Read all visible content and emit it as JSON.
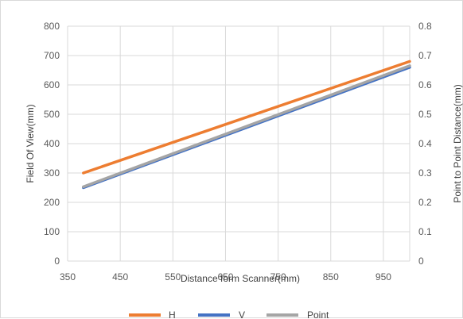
{
  "chart_data": {
    "type": "line",
    "title": "",
    "xlabel": "Distance form Scanner(mm)",
    "ylabel": "Field Of View(mm)",
    "y2label": "Point to Point Distance(mm)",
    "xlim": [
      350,
      1000
    ],
    "ylim": [
      0,
      800
    ],
    "y2lim": [
      0,
      0.8
    ],
    "xticks": [
      "350",
      "450",
      "550",
      "650",
      "750",
      "850",
      "950"
    ],
    "yticks": [
      "0",
      "100",
      "200",
      "300",
      "400",
      "500",
      "600",
      "700",
      "800"
    ],
    "y2ticks": [
      "0",
      "0.1",
      "0.2",
      "0.3",
      "0.4",
      "0.5",
      "0.6",
      "0.7",
      "0.8"
    ],
    "grid": true,
    "legend_position": "bottom",
    "series": [
      {
        "name": "H",
        "axis": "left",
        "color": "#ed7d31",
        "x": [
          380,
          1000
        ],
        "y": [
          300,
          680
        ]
      },
      {
        "name": "V",
        "axis": "left",
        "color": "#4472c4",
        "x": [
          380,
          1000
        ],
        "y": [
          250,
          660
        ]
      },
      {
        "name": "Point",
        "axis": "right",
        "color": "#a5a5a5",
        "x": [
          380,
          1000
        ],
        "y": [
          0.253,
          0.665
        ]
      }
    ]
  }
}
